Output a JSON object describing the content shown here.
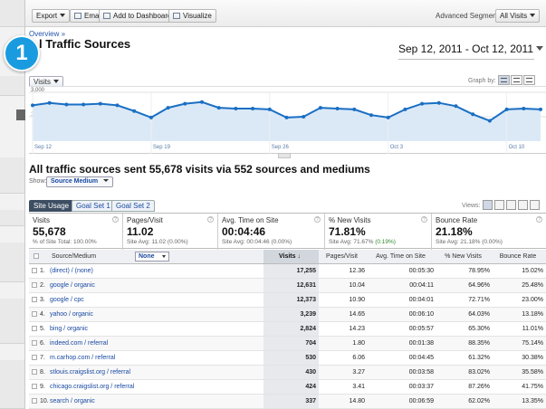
{
  "step_badge": "1",
  "toolbar": {
    "export_label": "Export",
    "email_label": "Email",
    "dashboard_label": "Add to Dashboard",
    "visualize_label": "Visualize",
    "advanced_segments_label": "Advanced Segments:",
    "segment_value": "All Visits"
  },
  "breadcrumb": "Overview »",
  "page_title": "l Traffic Sources",
  "date_range": "Sep 12, 2011 - Oct 12, 2011",
  "graph": {
    "metric": "Visits",
    "graph_by_label": "Graph by:"
  },
  "chart_data": {
    "type": "line",
    "ylim": [
      0,
      3000
    ],
    "yticks": [
      "3,000",
      "1,500"
    ],
    "x_labels": [
      "Sep 12",
      "Sep 19",
      "Sep 26",
      "Oct 3",
      "Oct 10"
    ],
    "x_label_index": [
      0,
      7,
      14,
      21,
      28
    ],
    "series": [
      {
        "values": [
          2200,
          2350,
          2250,
          2250,
          2300,
          2200,
          1850,
          1450,
          2050,
          2300,
          2400,
          2050,
          2000,
          2000,
          1950,
          1450,
          1500,
          2050,
          2000,
          1950,
          1600,
          1450,
          1950,
          2300,
          2350,
          2150,
          1650,
          1250,
          1950,
          2000,
          1950
        ]
      }
    ],
    "color": "#1a6fc4"
  },
  "summary": "All traffic sources sent 55,678 visits via 552 sources and mediums",
  "show": {
    "label": "Show:",
    "value": "Source Medium"
  },
  "tabs": [
    "Site Usage",
    "Goal Set 1",
    "Goal Set 2"
  ],
  "views_label": "Views:",
  "scorecard": [
    {
      "label": "Visits",
      "value": "55,678",
      "sub": "% of Site Total: ",
      "sub_bold": "100.00%"
    },
    {
      "label": "Pages/Visit",
      "value": "11.02",
      "sub": "Site Avg: ",
      "sub_bold": "11.02 (0.00%)"
    },
    {
      "label": "Avg. Time on Site",
      "value": "00:04:46",
      "sub": "Site Avg: ",
      "sub_bold": "00:04:46 (0.00%)"
    },
    {
      "label": "% New Visits",
      "value": "71.81%",
      "sub": "Site Avg: 71.67% ",
      "sub_bold": "(0.19%)"
    },
    {
      "label": "Bounce Rate",
      "value": "21.18%",
      "sub": "Site Avg: ",
      "sub_bold": "21.18% (0.00%)"
    }
  ],
  "table": {
    "headers": {
      "source": "Source/Medium",
      "second_dimension": "None",
      "visits": "Visits",
      "pages_visit": "Pages/Visit",
      "avg_time": "Avg. Time on Site",
      "new_visits": "% New Visits",
      "bounce_rate": "Bounce Rate"
    },
    "rows": [
      {
        "num": "1.",
        "source": "(direct) / (none)",
        "visits": "17,255",
        "pps": "12.36",
        "avg": "00:05:30",
        "nv": "78.95%",
        "br": "15.02%"
      },
      {
        "num": "2.",
        "source": "google / organic",
        "visits": "12,631",
        "pps": "10.04",
        "avg": "00:04:11",
        "nv": "64.96%",
        "br": "25.48%"
      },
      {
        "num": "3.",
        "source": "google / cpc",
        "visits": "12,373",
        "pps": "10.90",
        "avg": "00:04:01",
        "nv": "72.71%",
        "br": "23.00%"
      },
      {
        "num": "4.",
        "source": "yahoo / organic",
        "visits": "3,239",
        "pps": "14.65",
        "avg": "00:06:10",
        "nv": "64.03%",
        "br": "13.18%"
      },
      {
        "num": "5.",
        "source": "bing / organic",
        "visits": "2,824",
        "pps": "14.23",
        "avg": "00:05:57",
        "nv": "65.30%",
        "br": "11.01%"
      },
      {
        "num": "6.",
        "source": "indeed.com / referral",
        "visits": "704",
        "pps": "1.80",
        "avg": "00:01:38",
        "nv": "88.35%",
        "br": "75.14%"
      },
      {
        "num": "7.",
        "source": "m.carhop.com / referral",
        "visits": "530",
        "pps": "6.06",
        "avg": "00:04:45",
        "nv": "61.32%",
        "br": "30.38%"
      },
      {
        "num": "8.",
        "source": "stlouis.craigslist.org / referral",
        "visits": "430",
        "pps": "3.27",
        "avg": "00:03:58",
        "nv": "83.02%",
        "br": "35.58%"
      },
      {
        "num": "9.",
        "source": "chicago.craigslist.org / referral",
        "visits": "424",
        "pps": "3.41",
        "avg": "00:03:37",
        "nv": "87.26%",
        "br": "41.75%"
      },
      {
        "num": "10.",
        "source": "search / organic",
        "visits": "337",
        "pps": "14.80",
        "avg": "00:06:59",
        "nv": "62.02%",
        "br": "13.35%"
      }
    ]
  }
}
